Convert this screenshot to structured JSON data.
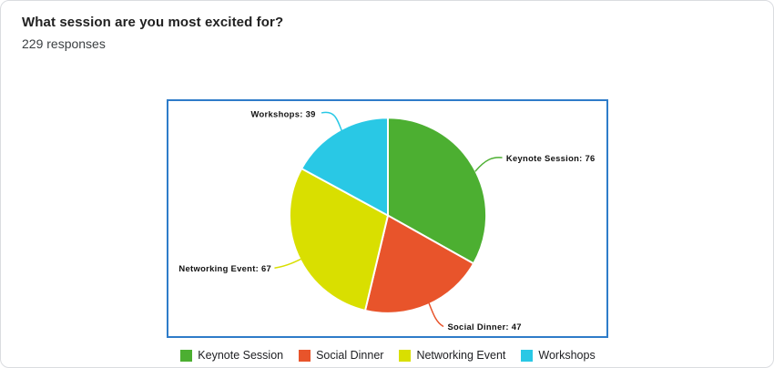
{
  "header": {
    "title": "What session are you most excited for?",
    "responses": "229 responses"
  },
  "chart_data": {
    "type": "pie",
    "title": "What session are you most excited for?",
    "total": 229,
    "start_angle_deg": 0,
    "direction": "clockwise",
    "legend_position": "bottom",
    "slices": [
      {
        "label": "Keynote Session",
        "value": 76,
        "color": "#4CAF31",
        "callout": "Keynote Session: 76"
      },
      {
        "label": "Social Dinner",
        "value": 47,
        "color": "#E8542B",
        "callout": "Social Dinner: 47"
      },
      {
        "label": "Networking Event",
        "value": 67,
        "color": "#D9DF00",
        "callout": "Networking Event: 67"
      },
      {
        "label": "Workshops",
        "value": 39,
        "color": "#29C8E5",
        "callout": "Workshops: 39"
      }
    ]
  },
  "colors": {
    "chart_border": "#2E7CC9",
    "card_border": "#DADCE0",
    "separator": "#FFFFFF"
  }
}
